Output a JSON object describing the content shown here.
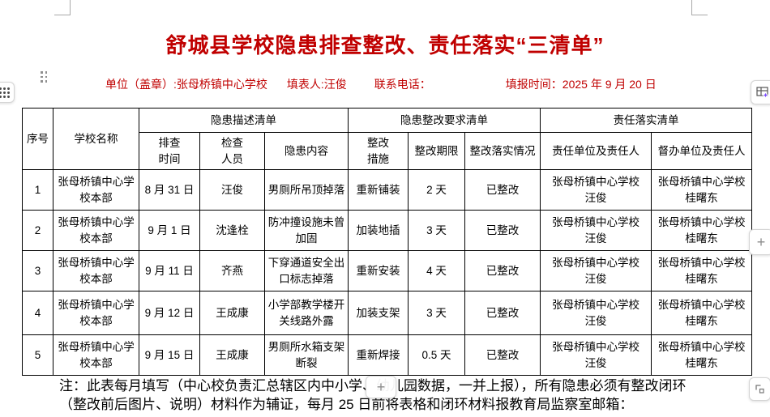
{
  "header": {
    "title": "舒城县学校隐患排查整改、责任落实“三清单”",
    "unit": "单位（盖章）:张母桥镇中心学校",
    "preparer": "填表人:汪俊",
    "phone": "联系电话：",
    "report_date": "填报时间：2025 年 9 月 20 日"
  },
  "table": {
    "group_headers": {
      "seq": "序号",
      "school": "学校名称",
      "danger_desc": "隐患描述清单",
      "rectify_req": "隐患整改要求清单",
      "responsibility": "责任落实清单"
    },
    "sub_headers": [
      "排查\n时间",
      "检查\n人员",
      "隐患内容",
      "整改\n措施",
      "整改期限",
      "整改落实情况",
      "责任单位及责任人",
      "督办单位及责任人"
    ],
    "rows": [
      {
        "seq": "1",
        "school": "张母桥镇中心学\n校本部",
        "time": "8 月 31 日",
        "inspector": "汪俊",
        "content": "男厕所吊顶掉落",
        "measure": "重新铺装",
        "deadline": "2 天",
        "status": "已整改",
        "responsible": "张母桥镇中心学校\n汪俊",
        "supervisor": "张母桥镇中心学校\n桂曙东"
      },
      {
        "seq": "2",
        "school": "张母桥镇中心学\n校本部",
        "time": "9 月 1 日",
        "inspector": "沈逢栓",
        "content": "防冲撞设施未曾\n加固",
        "measure": "加装地插",
        "deadline": "3 天",
        "status": "已整改",
        "responsible": "张母桥镇中心学校\n汪俊",
        "supervisor": "张母桥镇中心学校\n桂曙东"
      },
      {
        "seq": "3",
        "school": "张母桥镇中心学\n校本部",
        "time": "9 月 11 日",
        "inspector": "齐燕",
        "content": "下穿通道安全出\n口标志掉落",
        "measure": "重新安装",
        "deadline": "4 天",
        "status": "已整改",
        "responsible": "张母桥镇中心学校\n汪俊",
        "supervisor": "张母桥镇中心学校\n桂曙东"
      },
      {
        "seq": "4",
        "school": "张母桥镇中心学\n校本部",
        "time": "9 月 12 日",
        "inspector": "王成康",
        "content": "小学部教学楼开\n关线路外露",
        "measure": "加装支架",
        "deadline": "3 天",
        "status": "已整改",
        "responsible": "张母桥镇中心学校\n汪俊",
        "supervisor": "张母桥镇中心学校\n桂曙东"
      },
      {
        "seq": "5",
        "school": "张母桥镇中心学\n校本部",
        "time": "9 月 15 日",
        "inspector": "王成康",
        "content": "男厕所水箱支架\n断裂",
        "measure": "重新焊接",
        "deadline": "0.5 天",
        "status": "已整改",
        "responsible": "张母桥镇中心学校\n汪俊",
        "supervisor": "张母桥镇中心学校\n桂曙东"
      }
    ]
  },
  "note": {
    "line1": "注：此表每月填写（中心校负责汇总辖区内中小学、幼儿园数据，一并上报），所有隐患必须有整改闭环",
    "line2": "（整改前后图片、说明）材料作为辅证，每月 25 日前将表格和闭环材料报教育局监察室邮箱："
  },
  "ui": {
    "add_row_label": "+",
    "add_column_label": "+",
    "colors": {
      "accent_red": "#c00000",
      "sparkle_purple": "#7c4dff"
    }
  }
}
